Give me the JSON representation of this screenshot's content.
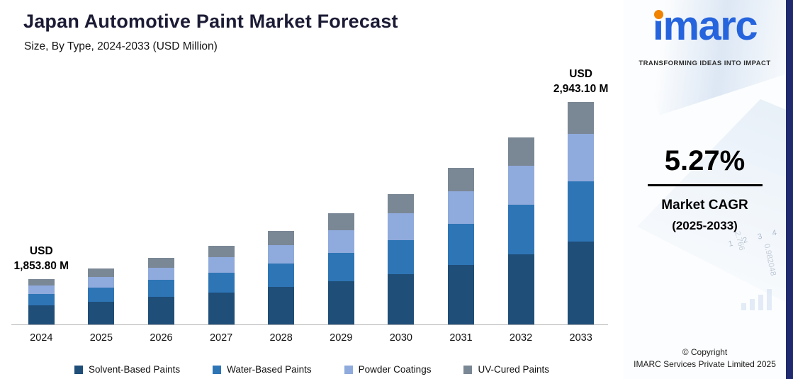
{
  "header": {
    "title": "Japan Automotive Paint Market Forecast",
    "subtitle": "Size, By Type, 2024-2033 (USD Million)"
  },
  "chart_data": {
    "type": "bar",
    "stacked": true,
    "unit": "USD Million",
    "title": "Japan Automotive Paint Market Forecast",
    "xlabel": "",
    "ylabel": "",
    "y_axis_visible": false,
    "grid": false,
    "legend_position": "bottom",
    "categories": [
      "2024",
      "2025",
      "2026",
      "2027",
      "2028",
      "2029",
      "2030",
      "2031",
      "2032",
      "2033"
    ],
    "series": [
      {
        "name": "Solvent-Based Paints",
        "color": "#1F4E79",
        "heights": [
          28,
          33,
          40,
          46,
          54,
          62,
          72,
          85,
          100,
          118
        ],
        "values_estimated_usd_m": [
          799,
          822,
          846,
          871,
          897,
          923,
          950,
          978,
          1039,
          1103
        ]
      },
      {
        "name": "Water-Based Paints",
        "color": "#2E75B6",
        "heights": [
          16,
          20,
          24,
          28,
          33,
          40,
          48,
          58,
          70,
          85
        ],
        "values_estimated_usd_m": [
          456,
          478,
          500,
          523,
          547,
          572,
          598,
          645,
          716,
          794
        ]
      },
      {
        "name": "Powder Coatings",
        "color": "#8FAADC",
        "heights": [
          12,
          15,
          17,
          22,
          26,
          32,
          38,
          46,
          55,
          67
        ],
        "values_estimated_usd_m": [
          342,
          356,
          371,
          386,
          402,
          419,
          457,
          505,
          552,
          626
        ]
      },
      {
        "name": "UV-Cured Paints",
        "color": "#7A8795",
        "heights": [
          9,
          12,
          14,
          16,
          20,
          24,
          27,
          33,
          40,
          45
        ],
        "values_estimated_usd_m": [
          257,
          264,
          268,
          280,
          304,
          346,
          375,
          412,
          418,
          420
        ]
      }
    ],
    "labeled_totals": {
      "2024": "1,853.80",
      "2033": "2,943.10"
    },
    "estimated_totals_usd_m": [
      1853.8,
      1920,
      1985,
      2060,
      2150,
      2260,
      2380,
      2540,
      2725,
      2943.1
    ],
    "annotations": [
      {
        "target": "2024",
        "lines": [
          "USD",
          "1,853.80 M"
        ]
      },
      {
        "target": "2033",
        "lines": [
          "USD",
          "2,943.10 M"
        ]
      }
    ]
  },
  "sidebar": {
    "logo_text": "imarc",
    "tagline": "TRANSFORMING IDEAS INTO IMPACT",
    "cagr_value": "5.27%",
    "cagr_label": "Market CAGR",
    "cagr_period": "(2025-2033)",
    "copyright_line1": "© Copyright",
    "copyright_line2": "IMARC Services Private Limited 2025",
    "decor": {
      "sequence": "1 2 3 4",
      "value_a": "0.982048",
      "value_b": "2.766"
    }
  }
}
